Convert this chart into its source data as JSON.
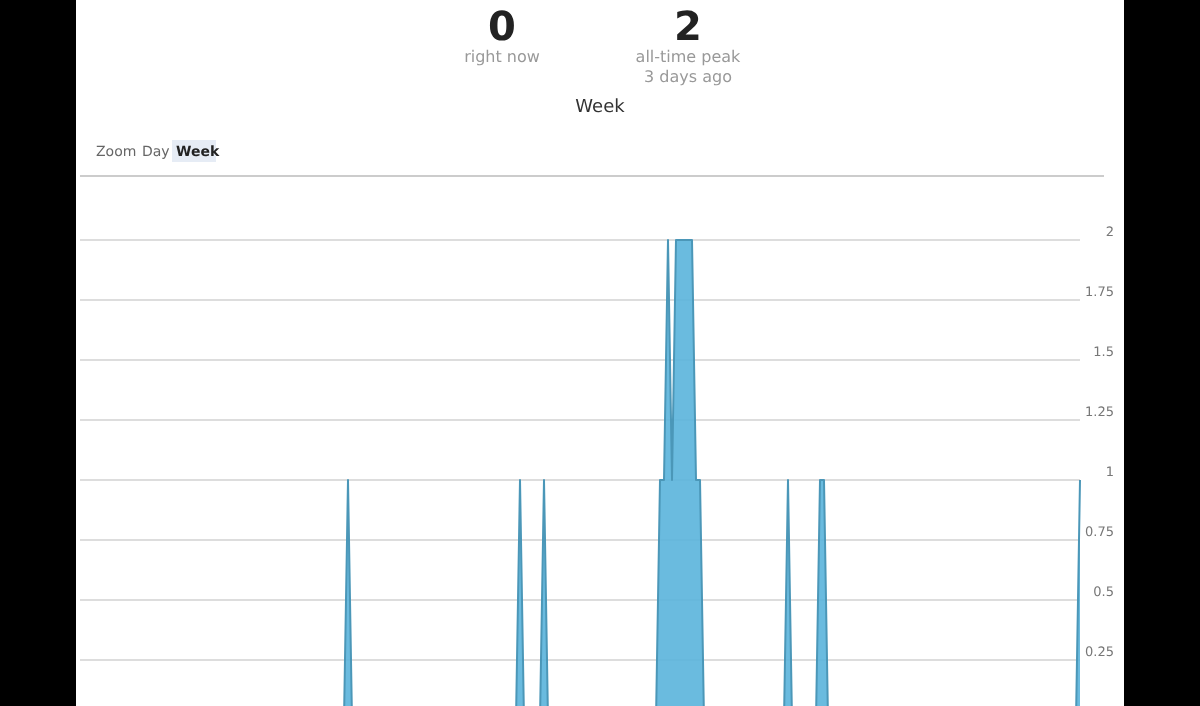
{
  "chart_data": {
    "type": "area",
    "title": "Week",
    "annotations": [
      "0",
      "right now",
      "2",
      "all-time peak",
      "3 days ago",
      "Zoom",
      "Day",
      "Week"
    ],
    "categories": [
      null,
      null,
      null,
      null,
      null,
      null,
      null,
      null,
      null,
      null,
      null,
      null,
      null,
      null,
      null,
      null,
      null,
      null,
      null,
      null,
      null,
      null,
      null,
      null,
      null,
      null,
      null,
      null,
      null,
      null,
      null,
      null,
      null,
      null,
      null,
      null,
      null,
      null,
      null,
      null,
      null,
      null,
      null,
      null,
      null,
      null,
      null,
      null,
      null,
      null,
      null,
      null,
      null,
      null,
      null,
      null,
      null,
      null,
      null,
      null,
      null,
      null,
      null,
      null,
      null,
      null,
      null,
      null,
      null,
      null,
      null,
      null,
      null,
      null,
      null,
      null,
      null,
      null,
      null,
      null,
      null,
      null,
      null,
      null,
      null,
      null,
      null,
      null,
      null,
      null,
      null,
      null,
      null,
      null,
      null,
      null,
      null,
      null,
      null,
      null,
      null,
      null,
      null,
      null,
      null,
      null,
      null,
      null,
      null,
      null,
      null,
      null,
      null,
      null,
      null,
      null,
      null,
      null,
      null,
      null,
      null,
      null,
      null,
      null,
      null,
      null,
      null,
      null,
      null,
      null,
      null,
      null,
      null,
      null,
      null,
      null,
      null,
      null,
      null,
      null,
      null,
      null,
      null,
      null,
      null,
      null,
      null,
      null,
      null,
      null,
      null,
      null,
      null,
      null,
      null,
      null,
      null,
      null,
      null,
      null,
      null,
      null,
      null,
      null,
      null,
      null,
      null,
      null,
      null,
      null,
      null,
      null,
      null,
      null,
      null,
      null,
      null,
      null,
      null,
      null,
      null,
      null,
      null,
      null,
      null,
      null,
      null,
      null,
      null,
      null,
      null,
      null,
      null,
      null,
      null,
      null,
      null,
      null,
      null,
      null,
      null,
      null,
      null,
      null,
      null,
      null,
      null,
      null,
      null,
      null,
      null,
      null,
      null,
      null,
      null,
      null,
      null,
      null,
      null,
      null,
      null,
      null,
      null,
      null,
      null,
      null,
      null,
      null,
      null,
      null,
      null,
      null,
      null,
      null,
      null,
      null,
      null,
      null,
      null,
      null,
      null,
      null,
      null,
      null,
      null,
      null,
      null,
      null,
      null,
      null,
      null
    ],
    "values": [
      0,
      0,
      0,
      0,
      0,
      0,
      0,
      0,
      0,
      0,
      0,
      0,
      0,
      0,
      0,
      0,
      0,
      0,
      0,
      0,
      0,
      0,
      0,
      0,
      0,
      0,
      0,
      0,
      0,
      0,
      0,
      0,
      0,
      0,
      0,
      0,
      0,
      0,
      0,
      0,
      0,
      0,
      0,
      0,
      0,
      0,
      0,
      0,
      0,
      0,
      0,
      0,
      0,
      0,
      0,
      0,
      0,
      0,
      0,
      0,
      0,
      0,
      0,
      0,
      0,
      0,
      0,
      1,
      0,
      0,
      0,
      0,
      0,
      0,
      0,
      0,
      0,
      0,
      0,
      0,
      0,
      0,
      0,
      0,
      0,
      0,
      0,
      0,
      0,
      0,
      0,
      0,
      0,
      0,
      0,
      0,
      0,
      0,
      0,
      0,
      0,
      0,
      0,
      0,
      0,
      0,
      0,
      0,
      0,
      0,
      1,
      0,
      0,
      0,
      0,
      0,
      1,
      0,
      0,
      0,
      0,
      0,
      0,
      0,
      0,
      0,
      0,
      0,
      0,
      0,
      0,
      0,
      0,
      0,
      0,
      0,
      0,
      0,
      0,
      0,
      0,
      0,
      0,
      0,
      0,
      1,
      1,
      2,
      1,
      2,
      2,
      2,
      2,
      2,
      1,
      1,
      0,
      0,
      0,
      0,
      0,
      0,
      0,
      0,
      0,
      0,
      0,
      0,
      0,
      0,
      0,
      0,
      0,
      0,
      0,
      0,
      0,
      1,
      0,
      0,
      0,
      0,
      0,
      0,
      0,
      1,
      1,
      0,
      0,
      0,
      0,
      0,
      0,
      0,
      0,
      0,
      0,
      0,
      0,
      0,
      0,
      0,
      0,
      0,
      0,
      0,
      0,
      0,
      0,
      0,
      0,
      0,
      0,
      0,
      0,
      0,
      0,
      0,
      0,
      0,
      0,
      0,
      0,
      0,
      0,
      0,
      0,
      0,
      0,
      0,
      0,
      0,
      0,
      0,
      0,
      0,
      0,
      0,
      0,
      0,
      0,
      0,
      0,
      0,
      0,
      0,
      0,
      0,
      0,
      0,
      1
    ],
    "color": "#5ab4dc",
    "ylim": [
      0,
      2.25
    ],
    "yticks": [
      0.25,
      0.5,
      0.75,
      1,
      1.25,
      1.5,
      1.75,
      2
    ],
    "grid": "y",
    "tick_labels": "y"
  }
}
